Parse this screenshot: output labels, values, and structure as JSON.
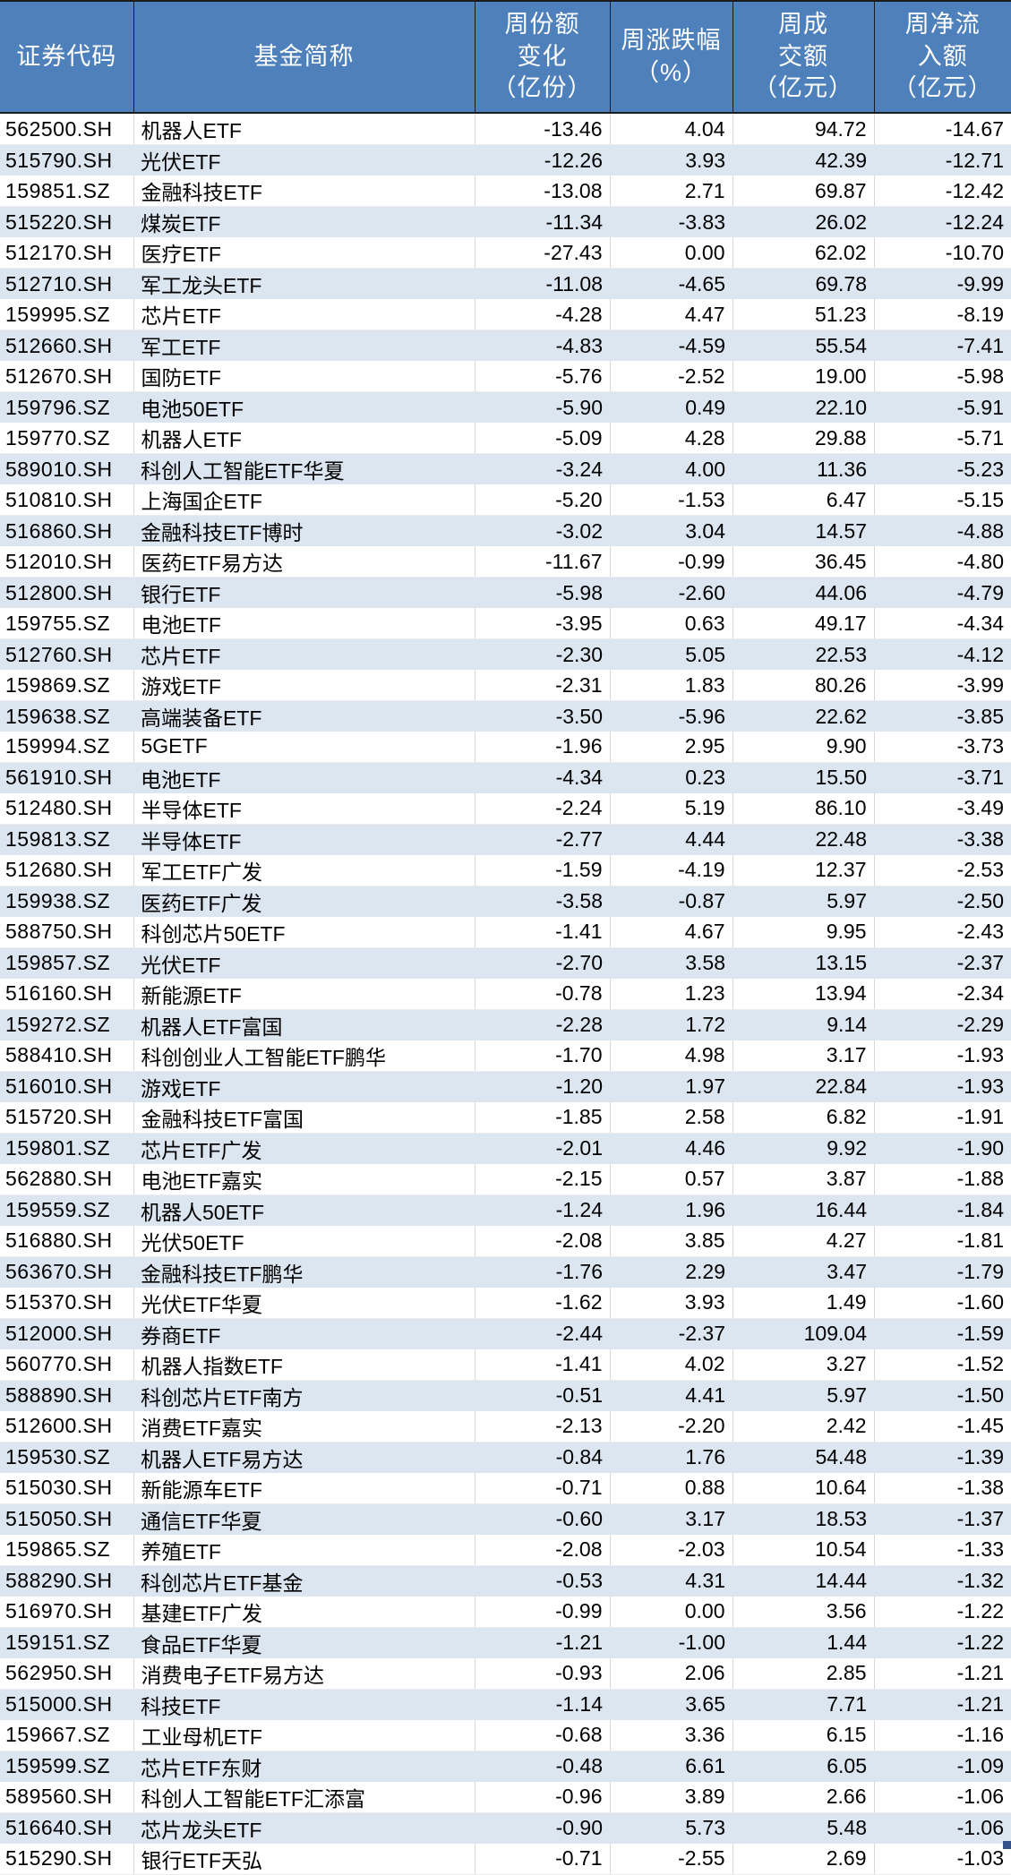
{
  "colors": {
    "header_bg": "#4e80bc",
    "header_text": "#ffffff",
    "row_bg": "#ffffff",
    "row_alt_bg": "#dce6f1",
    "text": "#000000",
    "corner_marker": "#35518b"
  },
  "table": {
    "columns": [
      {
        "key": "code",
        "label": "证券代码"
      },
      {
        "key": "name",
        "label": "基金简称"
      },
      {
        "key": "share_change",
        "label": "周份额\n变化\n（亿份）"
      },
      {
        "key": "pct_change",
        "label": "周涨跌幅\n（%）"
      },
      {
        "key": "turnover",
        "label": "周成\n交额\n（亿元）"
      },
      {
        "key": "net_inflow",
        "label": "周净流\n入额\n（亿元）"
      }
    ],
    "rows": [
      [
        "562500.SH",
        "机器人ETF",
        "-13.46",
        "4.04",
        "94.72",
        "-14.67"
      ],
      [
        "515790.SH",
        "光伏ETF",
        "-12.26",
        "3.93",
        "42.39",
        "-12.71"
      ],
      [
        "159851.SZ",
        "金融科技ETF",
        "-13.08",
        "2.71",
        "69.87",
        "-12.42"
      ],
      [
        "515220.SH",
        "煤炭ETF",
        "-11.34",
        "-3.83",
        "26.02",
        "-12.24"
      ],
      [
        "512170.SH",
        "医疗ETF",
        "-27.43",
        "0.00",
        "62.02",
        "-10.70"
      ],
      [
        "512710.SH",
        "军工龙头ETF",
        "-11.08",
        "-4.65",
        "69.78",
        "-9.99"
      ],
      [
        "159995.SZ",
        "芯片ETF",
        "-4.28",
        "4.47",
        "51.23",
        "-8.19"
      ],
      [
        "512660.SH",
        "军工ETF",
        "-4.83",
        "-4.59",
        "55.54",
        "-7.41"
      ],
      [
        "512670.SH",
        "国防ETF",
        "-5.76",
        "-2.52",
        "19.00",
        "-5.98"
      ],
      [
        "159796.SZ",
        "电池50ETF",
        "-5.90",
        "0.49",
        "22.10",
        "-5.91"
      ],
      [
        "159770.SZ",
        "机器人ETF",
        "-5.09",
        "4.28",
        "29.88",
        "-5.71"
      ],
      [
        "589010.SH",
        "科创人工智能ETF华夏",
        "-3.24",
        "4.00",
        "11.36",
        "-5.23"
      ],
      [
        "510810.SH",
        "上海国企ETF",
        "-5.20",
        "-1.53",
        "6.47",
        "-5.15"
      ],
      [
        "516860.SH",
        "金融科技ETF博时",
        "-3.02",
        "3.04",
        "14.57",
        "-4.88"
      ],
      [
        "512010.SH",
        "医药ETF易方达",
        "-11.67",
        "-0.99",
        "36.45",
        "-4.80"
      ],
      [
        "512800.SH",
        "银行ETF",
        "-5.98",
        "-2.60",
        "44.06",
        "-4.79"
      ],
      [
        "159755.SZ",
        "电池ETF",
        "-3.95",
        "0.63",
        "49.17",
        "-4.34"
      ],
      [
        "512760.SH",
        "芯片ETF",
        "-2.30",
        "5.05",
        "22.53",
        "-4.12"
      ],
      [
        "159869.SZ",
        "游戏ETF",
        "-2.31",
        "1.83",
        "80.26",
        "-3.99"
      ],
      [
        "159638.SZ",
        "高端装备ETF",
        "-3.50",
        "-5.96",
        "22.62",
        "-3.85"
      ],
      [
        "159994.SZ",
        "5GETF",
        "-1.96",
        "2.95",
        "9.90",
        "-3.73"
      ],
      [
        "561910.SH",
        "电池ETF",
        "-4.34",
        "0.23",
        "15.50",
        "-3.71"
      ],
      [
        "512480.SH",
        "半导体ETF",
        "-2.24",
        "5.19",
        "86.10",
        "-3.49"
      ],
      [
        "159813.SZ",
        "半导体ETF",
        "-2.77",
        "4.44",
        "22.48",
        "-3.38"
      ],
      [
        "512680.SH",
        "军工ETF广发",
        "-1.59",
        "-4.19",
        "12.37",
        "-2.53"
      ],
      [
        "159938.SZ",
        "医药ETF广发",
        "-3.58",
        "-0.87",
        "5.97",
        "-2.50"
      ],
      [
        "588750.SH",
        "科创芯片50ETF",
        "-1.41",
        "4.67",
        "9.95",
        "-2.43"
      ],
      [
        "159857.SZ",
        "光伏ETF",
        "-2.70",
        "3.58",
        "13.15",
        "-2.37"
      ],
      [
        "516160.SH",
        "新能源ETF",
        "-0.78",
        "1.23",
        "13.94",
        "-2.34"
      ],
      [
        "159272.SZ",
        "机器人ETF富国",
        "-2.28",
        "1.72",
        "9.14",
        "-2.29"
      ],
      [
        "588410.SH",
        "科创创业人工智能ETF鹏华",
        "-1.70",
        "4.98",
        "3.17",
        "-1.93"
      ],
      [
        "516010.SH",
        "游戏ETF",
        "-1.20",
        "1.97",
        "22.84",
        "-1.93"
      ],
      [
        "515720.SH",
        "金融科技ETF富国",
        "-1.85",
        "2.58",
        "6.82",
        "-1.91"
      ],
      [
        "159801.SZ",
        "芯片ETF广发",
        "-2.01",
        "4.46",
        "9.92",
        "-1.90"
      ],
      [
        "562880.SH",
        "电池ETF嘉实",
        "-2.15",
        "0.57",
        "3.87",
        "-1.88"
      ],
      [
        "159559.SZ",
        "机器人50ETF",
        "-1.24",
        "1.96",
        "16.44",
        "-1.84"
      ],
      [
        "516880.SH",
        "光伏50ETF",
        "-2.08",
        "3.85",
        "4.27",
        "-1.81"
      ],
      [
        "563670.SH",
        "金融科技ETF鹏华",
        "-1.76",
        "2.29",
        "3.47",
        "-1.79"
      ],
      [
        "515370.SH",
        "光伏ETF华夏",
        "-1.62",
        "3.93",
        "1.49",
        "-1.60"
      ],
      [
        "512000.SH",
        "券商ETF",
        "-2.44",
        "-2.37",
        "109.04",
        "-1.59"
      ],
      [
        "560770.SH",
        "机器人指数ETF",
        "-1.41",
        "4.02",
        "3.27",
        "-1.52"
      ],
      [
        "588890.SH",
        "科创芯片ETF南方",
        "-0.51",
        "4.41",
        "5.97",
        "-1.50"
      ],
      [
        "512600.SH",
        "消费ETF嘉实",
        "-2.13",
        "-2.20",
        "2.42",
        "-1.45"
      ],
      [
        "159530.SZ",
        "机器人ETF易方达",
        "-0.84",
        "1.76",
        "54.48",
        "-1.39"
      ],
      [
        "515030.SH",
        "新能源车ETF",
        "-0.71",
        "0.88",
        "10.64",
        "-1.38"
      ],
      [
        "515050.SH",
        "通信ETF华夏",
        "-0.60",
        "3.17",
        "18.53",
        "-1.37"
      ],
      [
        "159865.SZ",
        "养殖ETF",
        "-2.08",
        "-2.03",
        "10.54",
        "-1.33"
      ],
      [
        "588290.SH",
        "科创芯片ETF基金",
        "-0.53",
        "4.31",
        "14.44",
        "-1.32"
      ],
      [
        "516970.SH",
        "基建ETF广发",
        "-0.99",
        "0.00",
        "3.56",
        "-1.22"
      ],
      [
        "159151.SZ",
        "食品ETF华夏",
        "-1.21",
        "-1.00",
        "1.44",
        "-1.22"
      ],
      [
        "562950.SH",
        "消费电子ETF易方达",
        "-0.93",
        "2.06",
        "2.85",
        "-1.21"
      ],
      [
        "515000.SH",
        "科技ETF",
        "-1.14",
        "3.65",
        "7.71",
        "-1.21"
      ],
      [
        "159667.SZ",
        "工业母机ETF",
        "-0.68",
        "3.36",
        "6.15",
        "-1.16"
      ],
      [
        "159599.SZ",
        "芯片ETF东财",
        "-0.48",
        "6.61",
        "6.05",
        "-1.09"
      ],
      [
        "589560.SH",
        "科创人工智能ETF汇添富",
        "-0.96",
        "3.89",
        "2.66",
        "-1.06"
      ],
      [
        "516640.SH",
        "芯片龙头ETF",
        "-0.90",
        "5.73",
        "5.48",
        "-1.06"
      ],
      [
        "515290.SH",
        "银行ETF天弘",
        "-0.71",
        "-2.55",
        "2.69",
        "-1.03"
      ]
    ]
  }
}
